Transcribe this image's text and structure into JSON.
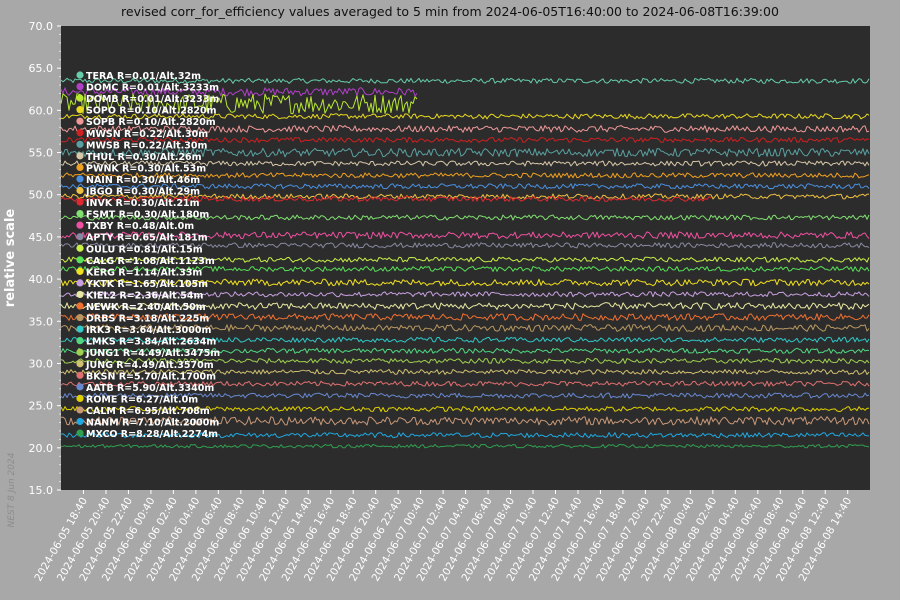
{
  "chart_data": {
    "type": "line",
    "title": "revised corr_for_efficiency values averaged to 5 min from 2024-06-05T16:40:00 to 2024-06-08T16:39:00",
    "xlabel": "",
    "ylabel": "relative scale",
    "ylim": [
      15.0,
      70.0
    ],
    "y_ticks": [
      "15.0",
      "20.0",
      "25.0",
      "30.0",
      "35.0",
      "40.0",
      "45.0",
      "50.0",
      "55.0",
      "60.0",
      "65.0",
      "70.0"
    ],
    "x_ticks": [
      "2024-06-05 18:40",
      "2024-06-05 20:40",
      "2024-06-05 22:40",
      "2024-06-06 00:40",
      "2024-06-06 02:40",
      "2024-06-06 04:40",
      "2024-06-06 06:40",
      "2024-06-06 08:40",
      "2024-06-06 10:40",
      "2024-06-06 12:40",
      "2024-06-06 14:40",
      "2024-06-06 16:40",
      "2024-06-06 18:40",
      "2024-06-06 20:40",
      "2024-06-06 22:40",
      "2024-06-07 00:40",
      "2024-06-07 02:40",
      "2024-06-07 04:40",
      "2024-06-07 06:40",
      "2024-06-07 08:40",
      "2024-06-07 10:40",
      "2024-06-07 12:40",
      "2024-06-07 14:40",
      "2024-06-07 16:40",
      "2024-06-07 18:40",
      "2024-06-07 20:40",
      "2024-06-07 22:40",
      "2024-06-08 00:40",
      "2024-06-08 02:40",
      "2024-06-08 04:40",
      "2024-06-08 06:40",
      "2024-06-08 08:40",
      "2024-06-08 10:40",
      "2024-06-08 12:40",
      "2024-06-08 14:40"
    ],
    "legend_placement": "left inside plot",
    "grid": false,
    "watermark": "NEST  8 Jun 2024",
    "series": [
      {
        "name": "TERA R=0.01/Alt.32m",
        "color": "#66ccaa",
        "level": 63.5,
        "noise": 0.3,
        "end": "2024-06-08 16:39"
      },
      {
        "name": "DOMC R=0.01/Alt.3233m",
        "color": "#b040c8",
        "level": 62.2,
        "noise": 0.5,
        "end": "2024-06-07 00:30"
      },
      {
        "name": "DOMB R=0.01/Alt.3233m",
        "color": "#b8e832",
        "level": 60.8,
        "noise": 1.2,
        "end": "2024-06-07 00:30"
      },
      {
        "name": "SOPO R=0.10/Alt.2820m",
        "color": "#e8d820",
        "level": 59.3,
        "noise": 0.3,
        "end": "2024-06-08 16:39"
      },
      {
        "name": "SOPB R=0.10/Alt.2820m",
        "color": "#f09898",
        "level": 57.8,
        "noise": 0.4,
        "end": "2024-06-08 16:39"
      },
      {
        "name": "MWSN R=0.22/Alt.30m",
        "color": "#d02020",
        "level": 56.5,
        "noise": 0.3,
        "end": "2024-06-08 16:39"
      },
      {
        "name": "MWSB R=0.22/Alt.30m",
        "color": "#5aa0a0",
        "level": 55.0,
        "noise": 0.5,
        "end": "2024-06-08 16:39"
      },
      {
        "name": "THUL R=0.30/Alt.26m",
        "color": "#d8c8a8",
        "level": 53.7,
        "noise": 0.3,
        "end": "2024-06-08 16:39"
      },
      {
        "name": "PWNK R=0.30/Alt.53m",
        "color": "#f0a020",
        "level": 52.3,
        "noise": 0.3,
        "end": "2024-06-08 16:39"
      },
      {
        "name": "NAIN R=0.30/Alt.46m",
        "color": "#4a90e0",
        "level": 51.0,
        "noise": 0.3,
        "end": "2024-06-08 16:39"
      },
      {
        "name": "JBGO R=0.30/Alt.29m",
        "color": "#f0c040",
        "level": 49.8,
        "noise": 0.3,
        "end": "2024-06-08 16:39"
      },
      {
        "name": "INVK R=0.30/Alt.21m",
        "color": "#e02830",
        "level": 49.5,
        "noise": 0.3,
        "end": "2024-06-08 02:40"
      },
      {
        "name": "FSMT R=0.30/Alt.180m",
        "color": "#80e070",
        "level": 47.3,
        "noise": 0.3,
        "end": "2024-06-08 16:39"
      },
      {
        "name": "TXBY R=0.48/Alt.0m",
        "color": "#f050a0",
        "level": 45.2,
        "noise": 0.4,
        "end": "2024-06-08 16:39"
      },
      {
        "name": "APTY R=0.65/Alt.181m",
        "color": "#8888a0",
        "level": 44.0,
        "noise": 0.3,
        "end": "2024-06-08 16:39"
      },
      {
        "name": "OULU R=0.81/Alt.15m",
        "color": "#c8f048",
        "level": 42.3,
        "noise": 0.3,
        "end": "2024-06-08 16:39"
      },
      {
        "name": "CALG R=1.08/Alt.1123m",
        "color": "#58e058",
        "level": 41.2,
        "noise": 0.3,
        "end": "2024-06-08 16:39"
      },
      {
        "name": "KERG R=1.14/Alt.33m",
        "color": "#f0e020",
        "level": 39.6,
        "noise": 0.4,
        "end": "2024-06-08 16:39"
      },
      {
        "name": "YKTK R=1.65/Alt.105m",
        "color": "#c8a0e0",
        "level": 38.2,
        "noise": 0.3,
        "end": "2024-06-08 16:39"
      },
      {
        "name": "KIEL2 R=2.36/Alt.54m",
        "color": "#e8e8a0",
        "level": 36.8,
        "noise": 0.4,
        "end": "2024-06-08 16:39"
      },
      {
        "name": "NEWK R=2.40/Alt.50m",
        "color": "#f07030",
        "level": 35.5,
        "noise": 0.4,
        "end": "2024-06-08 16:39"
      },
      {
        "name": "DRBS R=3.18/Alt.225m",
        "color": "#b89860",
        "level": 34.2,
        "noise": 0.4,
        "end": "2024-06-08 16:39"
      },
      {
        "name": "IRK3 R=3.64/Alt.3000m",
        "color": "#30c8c8",
        "level": 32.8,
        "noise": 0.3,
        "end": "2024-06-08 16:39"
      },
      {
        "name": "LMKS R=3.84/Alt.2634m",
        "color": "#50d880",
        "level": 31.5,
        "noise": 0.3,
        "end": "2024-06-08 16:39"
      },
      {
        "name": "JUNG1 R=4.49/Alt.3475m",
        "color": "#a0d050",
        "level": 30.3,
        "noise": 0.3,
        "end": "2024-06-08 16:39"
      },
      {
        "name": "JUNG R=4.49/Alt.3570m",
        "color": "#d0c070",
        "level": 29.0,
        "noise": 0.3,
        "end": "2024-06-08 16:39"
      },
      {
        "name": "BKSN R=5.70/Alt.1700m",
        "color": "#e07070",
        "level": 27.6,
        "noise": 0.3,
        "end": "2024-06-08 16:39"
      },
      {
        "name": "AATB R=5.90/Alt.3340m",
        "color": "#6888d0",
        "level": 26.2,
        "noise": 0.3,
        "end": "2024-06-08 16:39"
      },
      {
        "name": "ROME R=6.27/Alt.0m",
        "color": "#e0d000",
        "level": 24.6,
        "noise": 0.3,
        "end": "2024-06-08 16:39"
      },
      {
        "name": "CALM R=6.95/Alt.708m",
        "color": "#c89878",
        "level": 23.2,
        "noise": 0.5,
        "end": "2024-06-08 16:39"
      },
      {
        "name": "NANM R=7.10/Alt.2000m",
        "color": "#20a8e0",
        "level": 21.5,
        "noise": 0.3,
        "end": "2024-06-08 16:39"
      },
      {
        "name": "MXCO R=8.28/Alt.2274m",
        "color": "#30a050",
        "level": 20.2,
        "noise": 0.2,
        "end": "2024-06-08 16:39"
      }
    ]
  }
}
